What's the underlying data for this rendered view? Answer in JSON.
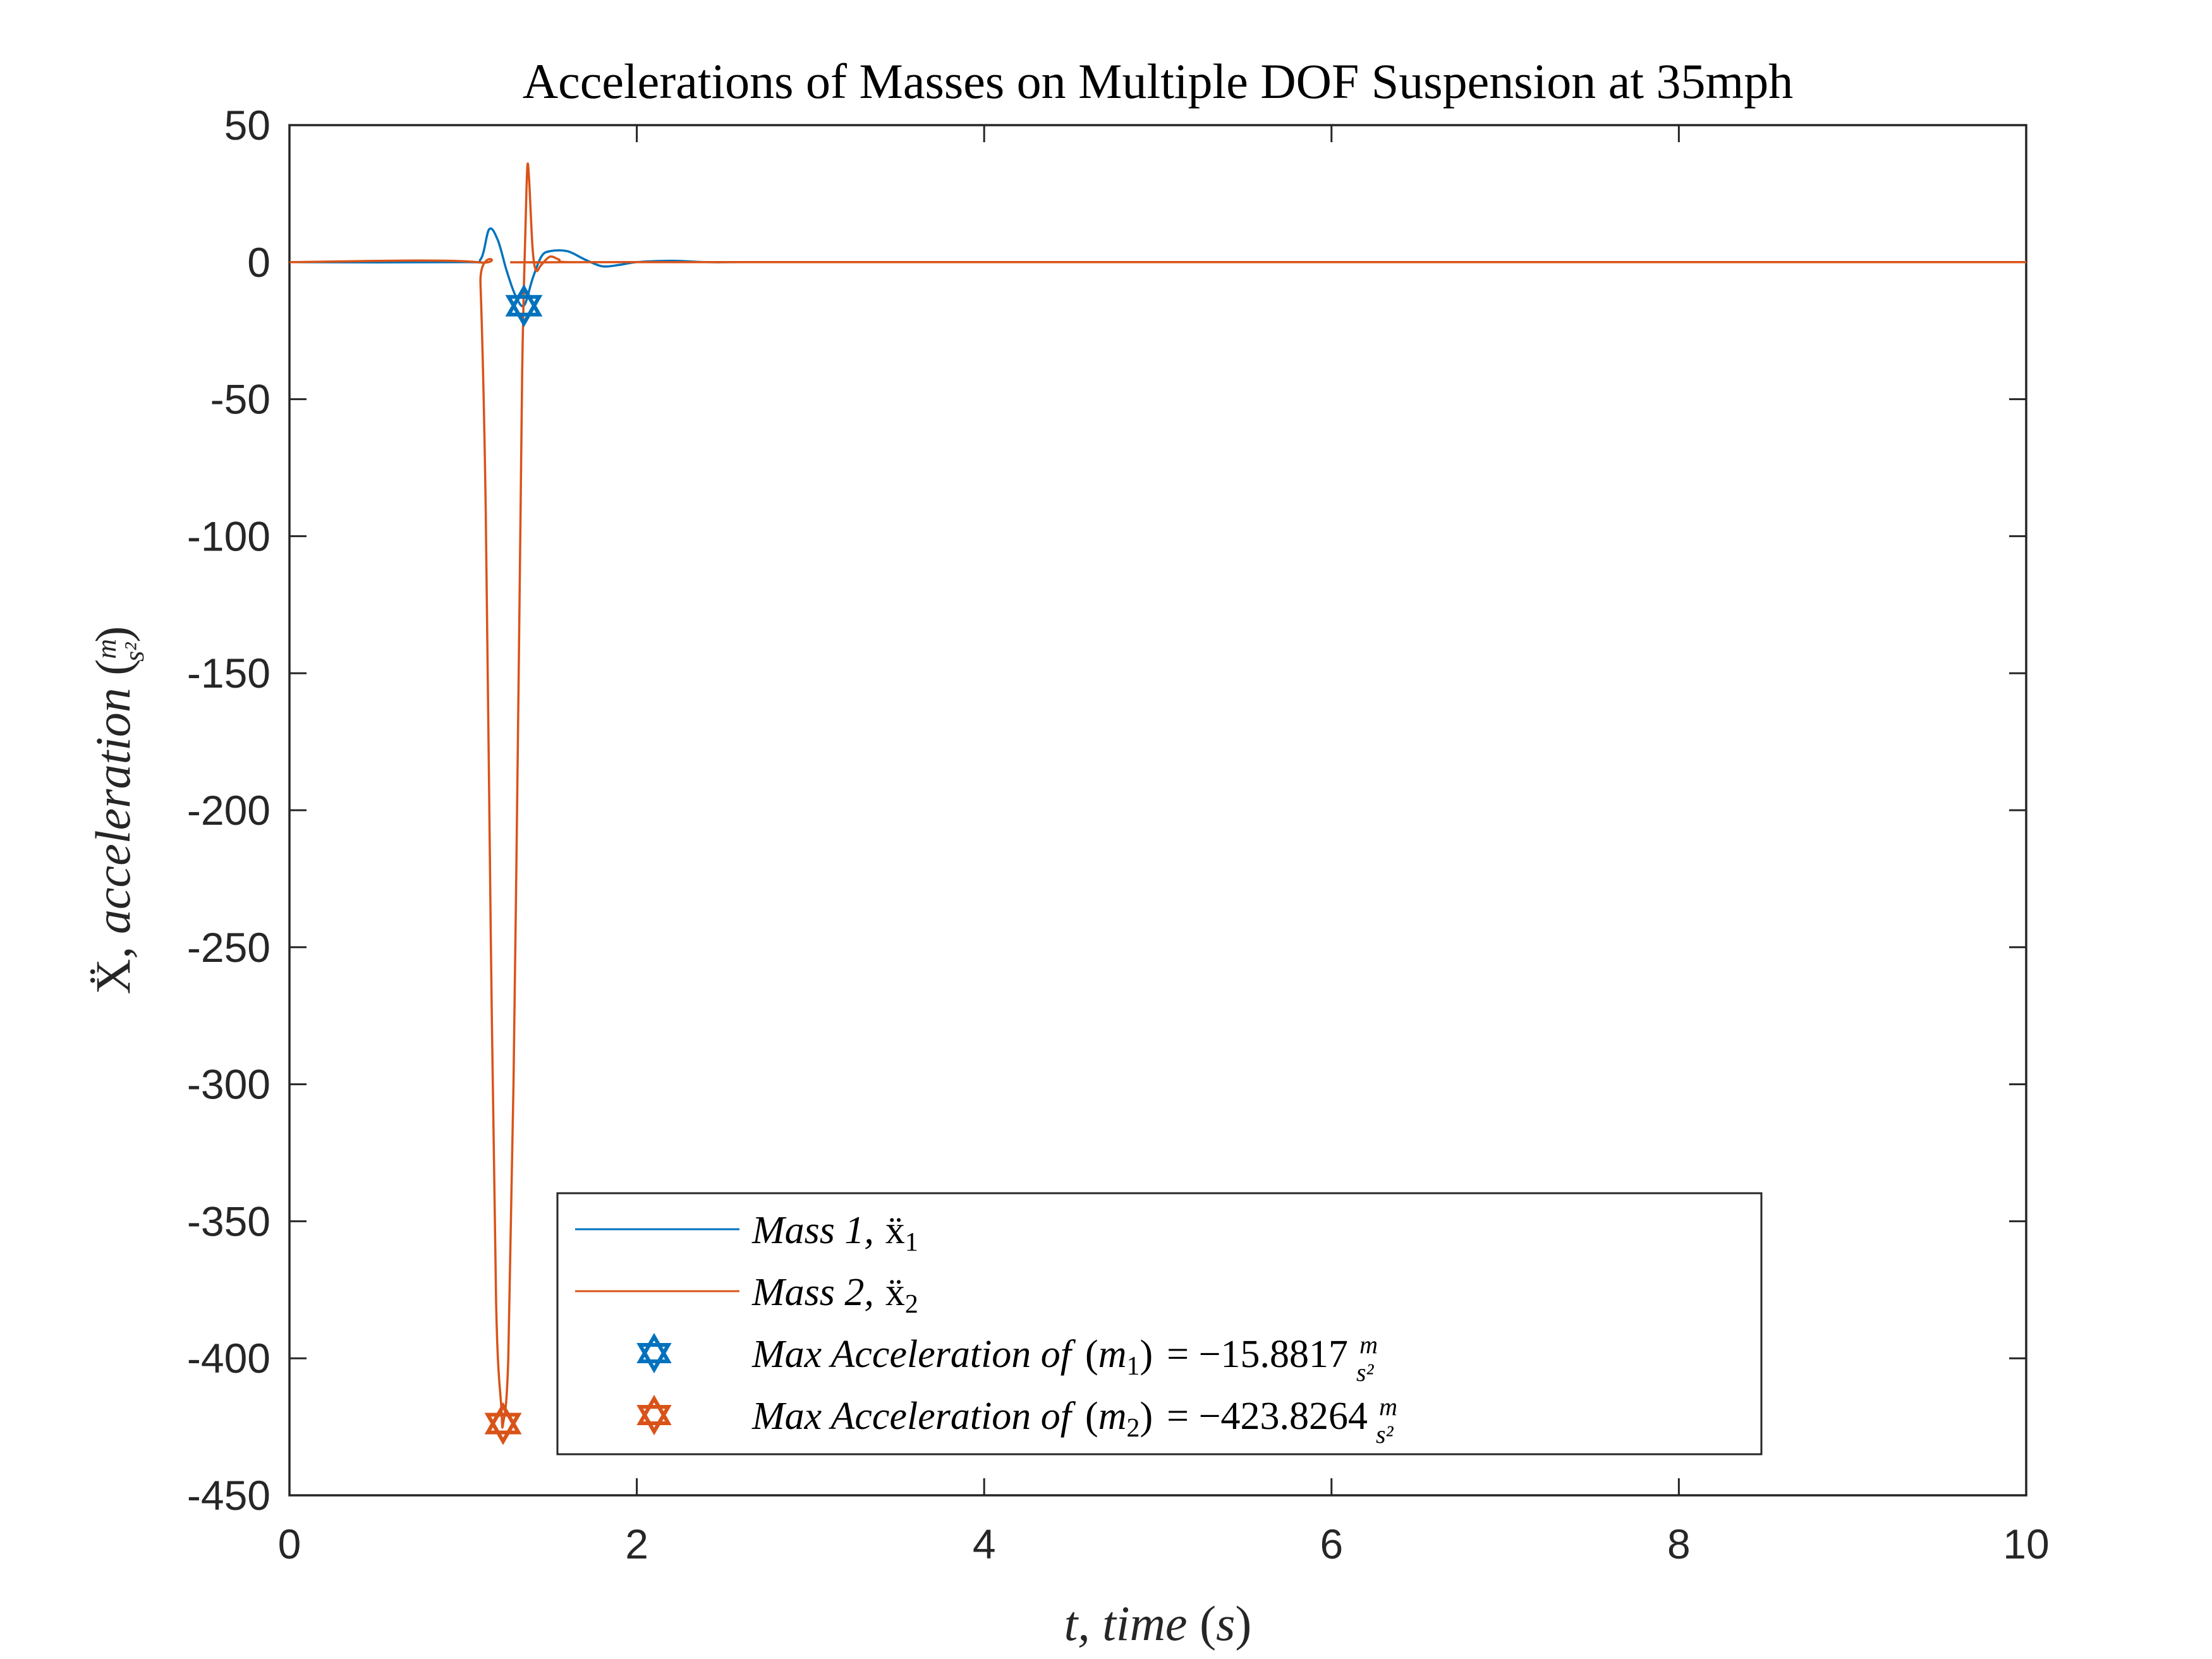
{
  "chart_data": {
    "type": "line",
    "title": "Accelerations of Masses on Multiple DOF Suspension at 35mph",
    "xlabel": "t,  time (s)",
    "ylabel": "Ẍ,  acceleration (m/s²)",
    "xlim": [
      0,
      10
    ],
    "ylim": [
      -450,
      50
    ],
    "xticks": [
      0,
      2,
      4,
      6,
      8,
      10
    ],
    "yticks": [
      50,
      0,
      -50,
      -100,
      -150,
      -200,
      -250,
      -300,
      -350,
      -400,
      -450
    ],
    "xtick_labels": [
      "0",
      "2",
      "4",
      "6",
      "8",
      "10"
    ],
    "ytick_labels": [
      "50",
      "0",
      "-50",
      "-100",
      "-150",
      "-200",
      "-250",
      "-300",
      "-350",
      "-400",
      "-450"
    ],
    "grid": false,
    "legend_position": "bottom-center",
    "series": [
      {
        "name": "Mass 1, ẍ₁",
        "color": "#0072BD",
        "x": [
          0,
          1.0,
          1.1,
          1.15,
          1.2,
          1.25,
          1.3,
          1.35,
          1.4,
          1.45,
          1.5,
          1.6,
          1.7,
          1.8,
          1.9,
          2.0,
          2.2,
          2.4,
          2.6,
          3.0,
          10
        ],
        "y": [
          0,
          0,
          1,
          12,
          8,
          -3,
          -12,
          -15.8817,
          -6,
          2,
          4,
          4,
          1,
          -1.5,
          -1,
          0,
          0.5,
          0,
          0,
          0,
          0
        ]
      },
      {
        "name": "Mass 2, ẍ₂",
        "color": "#D95319",
        "x": [
          0,
          1.08,
          1.1,
          1.13,
          1.16,
          1.19,
          1.22,
          1.23,
          1.26,
          1.29,
          1.32,
          1.34,
          1.36,
          1.37,
          1.38,
          1.4,
          1.42,
          1.45,
          1.5,
          1.55,
          1.6,
          2.0,
          10
        ],
        "y": [
          0,
          0,
          -8,
          -90,
          -250,
          -380,
          -418,
          -423.8264,
          -400,
          -300,
          -150,
          -40,
          15,
          35,
          30,
          5,
          -3,
          -1,
          2,
          1,
          0,
          0,
          0
        ]
      }
    ],
    "markers": [
      {
        "name": "Max Acceleration of (m₁) = −15.8817 m/s²",
        "x": 1.35,
        "y": -15.8817,
        "color": "#0072BD",
        "shape": "hexagram"
      },
      {
        "name": "Max Acceleration of (m₂) = −423.8264 m/s²",
        "x": 1.23,
        "y": -423.8264,
        "color": "#D95319",
        "shape": "hexagram"
      }
    ]
  },
  "legend": {
    "mass1_label": "Mass 1,",
    "mass2_label": "Mass 2,",
    "max_prefix": "Max Acceleration of",
    "m1_value": "= −15.8817",
    "m2_value": "= −423.8264"
  }
}
